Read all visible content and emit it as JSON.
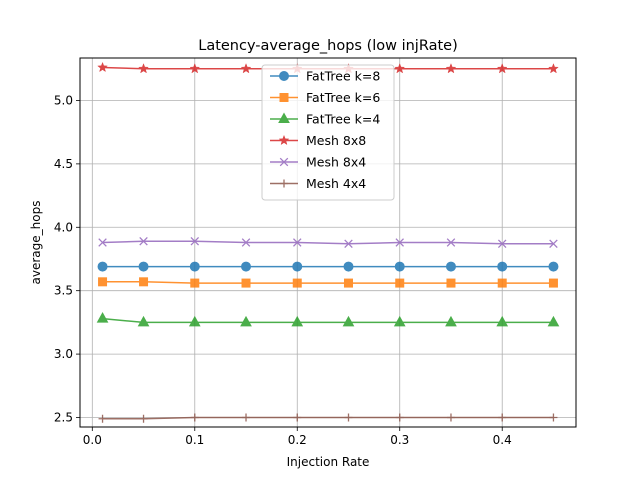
{
  "chart_data": {
    "type": "line",
    "title": "Latency-average_hops (low injRate)",
    "xlabel": "Injection Rate",
    "ylabel": "average_hops",
    "xlim": [
      -0.012,
      0.472
    ],
    "ylim": [
      2.425,
      5.335
    ],
    "xticks": [
      0.0,
      0.1,
      0.2,
      0.3,
      0.4
    ],
    "xtick_labels": [
      "0.0",
      "0.1",
      "0.2",
      "0.3",
      "0.4"
    ],
    "yticks": [
      2.5,
      3.0,
      3.5,
      4.0,
      4.5,
      5.0
    ],
    "ytick_labels": [
      "2.5",
      "3.0",
      "3.5",
      "4.0",
      "4.5",
      "5.0"
    ],
    "grid": true,
    "legend_position": "top-center",
    "x": [
      0.01,
      0.05,
      0.1,
      0.15,
      0.2,
      0.25,
      0.3,
      0.35,
      0.4,
      0.45
    ],
    "series": [
      {
        "name": "FatTree k=8",
        "color": "#1f77b4",
        "marker": "circle",
        "values": [
          3.69,
          3.69,
          3.69,
          3.69,
          3.69,
          3.69,
          3.69,
          3.69,
          3.69,
          3.69
        ]
      },
      {
        "name": "FatTree k=6",
        "color": "#ff7f0e",
        "marker": "square",
        "values": [
          3.57,
          3.57,
          3.56,
          3.56,
          3.56,
          3.56,
          3.56,
          3.56,
          3.56,
          3.56
        ]
      },
      {
        "name": "FatTree k=4",
        "color": "#2ca02c",
        "marker": "triangle",
        "values": [
          3.28,
          3.25,
          3.25,
          3.25,
          3.25,
          3.25,
          3.25,
          3.25,
          3.25,
          3.25
        ]
      },
      {
        "name": "Mesh 8x8",
        "color": "#d62728",
        "marker": "star",
        "values": [
          5.26,
          5.25,
          5.25,
          5.25,
          5.25,
          5.25,
          5.25,
          5.25,
          5.25,
          5.25
        ]
      },
      {
        "name": "Mesh 8x4",
        "color": "#9467bd",
        "marker": "x",
        "values": [
          3.88,
          3.89,
          3.89,
          3.88,
          3.88,
          3.87,
          3.88,
          3.88,
          3.87,
          3.87
        ]
      },
      {
        "name": "Mesh 4x4",
        "color": "#8c564b",
        "marker": "plus",
        "values": [
          2.49,
          2.49,
          2.5,
          2.5,
          2.5,
          2.5,
          2.5,
          2.5,
          2.5,
          2.5
        ]
      }
    ]
  }
}
